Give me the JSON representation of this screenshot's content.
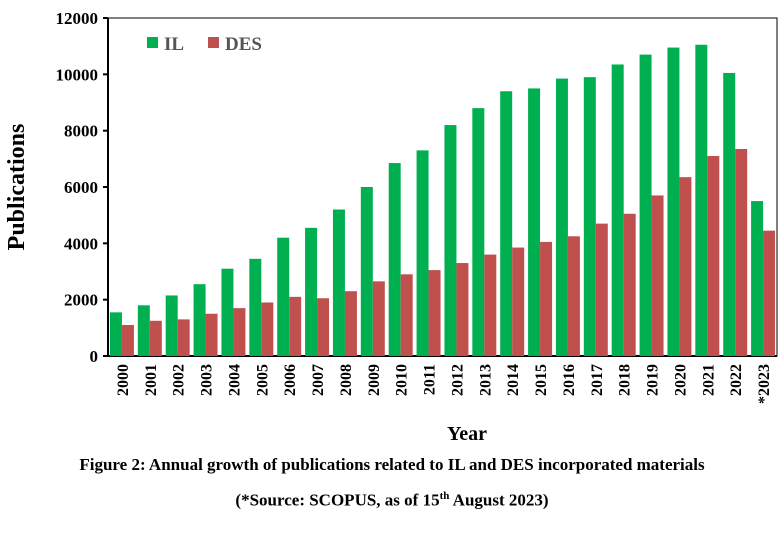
{
  "chart_data": {
    "type": "bar",
    "title": "",
    "xlabel": "Year",
    "ylabel": "Publications",
    "ylim": [
      0,
      12000
    ],
    "yticks": [
      0,
      2000,
      4000,
      6000,
      8000,
      10000,
      12000
    ],
    "legend_position": "top-left",
    "categories": [
      "2000",
      "2001",
      "2002",
      "2003",
      "2004",
      "2005",
      "2006",
      "2007",
      "2008",
      "2009",
      "2010",
      "2011",
      "2012",
      "2013",
      "2014",
      "2015",
      "2016",
      "2017",
      "2018",
      "2019",
      "2020",
      "2021",
      "2022",
      "*2023"
    ],
    "series": [
      {
        "name": "IL",
        "color": "#00b050",
        "values": [
          1550,
          1800,
          2150,
          2550,
          3100,
          3450,
          4200,
          4550,
          5200,
          6000,
          6850,
          7300,
          8200,
          8800,
          9400,
          9500,
          9850,
          9900,
          10350,
          10700,
          10950,
          11050,
          10050,
          5500
        ]
      },
      {
        "name": "DES",
        "color": "#c0504d",
        "values": [
          1100,
          1250,
          1300,
          1500,
          1700,
          1900,
          2100,
          2050,
          2300,
          2650,
          2900,
          3050,
          3300,
          3600,
          3850,
          4050,
          4250,
          4700,
          5050,
          5700,
          6350,
          7100,
          7350,
          4450
        ]
      }
    ]
  },
  "caption": {
    "line1": "Figure 2: Annual growth of publications related to IL and DES incorporated materials",
    "line2_pre": "(*Source: SCOPUS, as of 15",
    "line2_sup": "th",
    "line2_post": " August 2023)"
  }
}
